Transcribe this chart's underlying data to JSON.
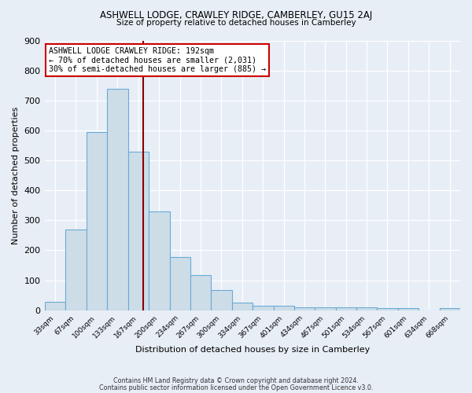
{
  "title1": "ASHWELL LODGE, CRAWLEY RIDGE, CAMBERLEY, GU15 2AJ",
  "title2": "Size of property relative to detached houses in Camberley",
  "xlabel": "Distribution of detached houses by size in Camberley",
  "ylabel": "Number of detached properties",
  "bar_color": "#ccdde8",
  "bar_edge_color": "#6aaad4",
  "background_color": "#e8eef6",
  "grid_color": "#ffffff",
  "vline_x": 192,
  "vline_color": "#8b0000",
  "annotation_text": "ASHWELL LODGE CRAWLEY RIDGE: 192sqm\n← 70% of detached houses are smaller (2,031)\n30% of semi-detached houses are larger (885) →",
  "annotation_box_color": "#ffffff",
  "annotation_border_color": "#cc0000",
  "footnote1": "Contains HM Land Registry data © Crown copyright and database right 2024.",
  "footnote2": "Contains public sector information licensed under the Open Government Licence v3.0.",
  "bin_edges": [
    33,
    67,
    100,
    133,
    167,
    200,
    234,
    267,
    300,
    334,
    367,
    401,
    434,
    467,
    501,
    534,
    567,
    601,
    634,
    668,
    701
  ],
  "counts": [
    27,
    270,
    595,
    740,
    530,
    330,
    178,
    117,
    68,
    25,
    15,
    15,
    10,
    10,
    10,
    10,
    8,
    8,
    0,
    8
  ],
  "ylim": [
    0,
    900
  ],
  "yticks": [
    0,
    100,
    200,
    300,
    400,
    500,
    600,
    700,
    800,
    900
  ]
}
